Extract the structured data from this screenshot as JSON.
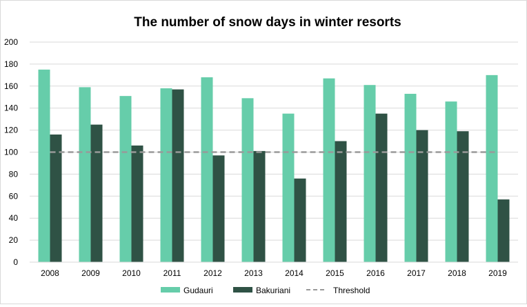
{
  "chart_data": {
    "type": "bar",
    "title": "The number of snow days in winter resorts",
    "categories": [
      "2008",
      "2009",
      "2010",
      "2011",
      "2012",
      "2013",
      "2014",
      "2015",
      "2016",
      "2017",
      "2018",
      "2019"
    ],
    "series": [
      {
        "name": "Gudauri",
        "color": "#66cdaa",
        "values": [
          175,
          159,
          151,
          158,
          168,
          149,
          135,
          167,
          161,
          153,
          146,
          170
        ]
      },
      {
        "name": "Bakuriani",
        "color": "#2f5245",
        "values": [
          116,
          125,
          106,
          157,
          97,
          101,
          76,
          110,
          135,
          120,
          119,
          57
        ]
      }
    ],
    "threshold": {
      "name": "Threshold",
      "value": 100,
      "color": "#999999",
      "style": "dashed"
    },
    "ylim": [
      0,
      200
    ],
    "yticks": [
      "0",
      "20",
      "40",
      "60",
      "80",
      "100",
      "120",
      "140",
      "160",
      "180",
      "200"
    ],
    "grid": true,
    "legend_position": "bottom",
    "xlabel": "",
    "ylabel": ""
  }
}
